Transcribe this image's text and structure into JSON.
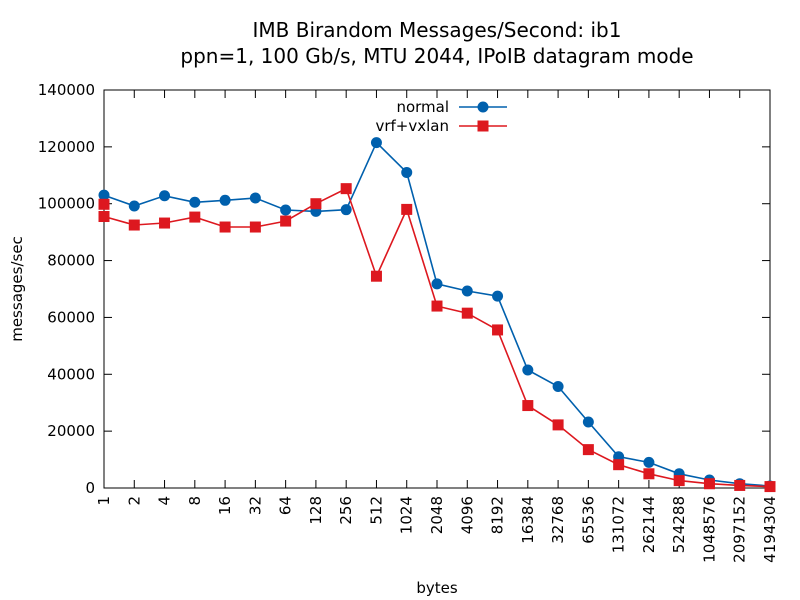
{
  "chart_data": {
    "type": "line",
    "title": "IMB Birandom Messages/Second: ib1",
    "subtitle": "ppn=1, 100 Gb/s, MTU 2044, IPoIB datagram mode",
    "xlabel": "bytes",
    "ylabel": "messages/sec",
    "ylim": [
      0,
      140000
    ],
    "yticks": [
      0,
      20000,
      40000,
      60000,
      80000,
      100000,
      120000,
      140000
    ],
    "categories": [
      "1",
      "2",
      "4",
      "8",
      "16",
      "32",
      "64",
      "128",
      "256",
      "512",
      "1024",
      "2048",
      "4096",
      "8192",
      "16384",
      "32768",
      "65536",
      "131072",
      "262144",
      "524288",
      "1048576",
      "2097152",
      "4194304"
    ],
    "legend_position": "top-center",
    "grid": false,
    "series": [
      {
        "name": "normal",
        "color": "#0060ad",
        "marker": "circle",
        "values": [
          103000,
          99200,
          102800,
          100500,
          101200,
          102000,
          97800,
          97300,
          97900,
          121500,
          111000,
          71800,
          69300,
          67500,
          41500,
          35700,
          23200,
          11000,
          9000,
          5000,
          2800,
          1500,
          700
        ]
      },
      {
        "name": "vrf+vxlan",
        "color": "#dd181f",
        "marker": "square",
        "values": [
          95500,
          92500,
          93200,
          95300,
          91800,
          91800,
          93900,
          100000,
          105300,
          74500,
          98000,
          64000,
          61500,
          55600,
          29000,
          22200,
          13500,
          8200,
          5000,
          2600,
          1500,
          900,
          500
        ]
      }
    ],
    "outlier_points": [
      {
        "series": "vrf+vxlan",
        "x": "1",
        "y": 99800
      }
    ]
  }
}
